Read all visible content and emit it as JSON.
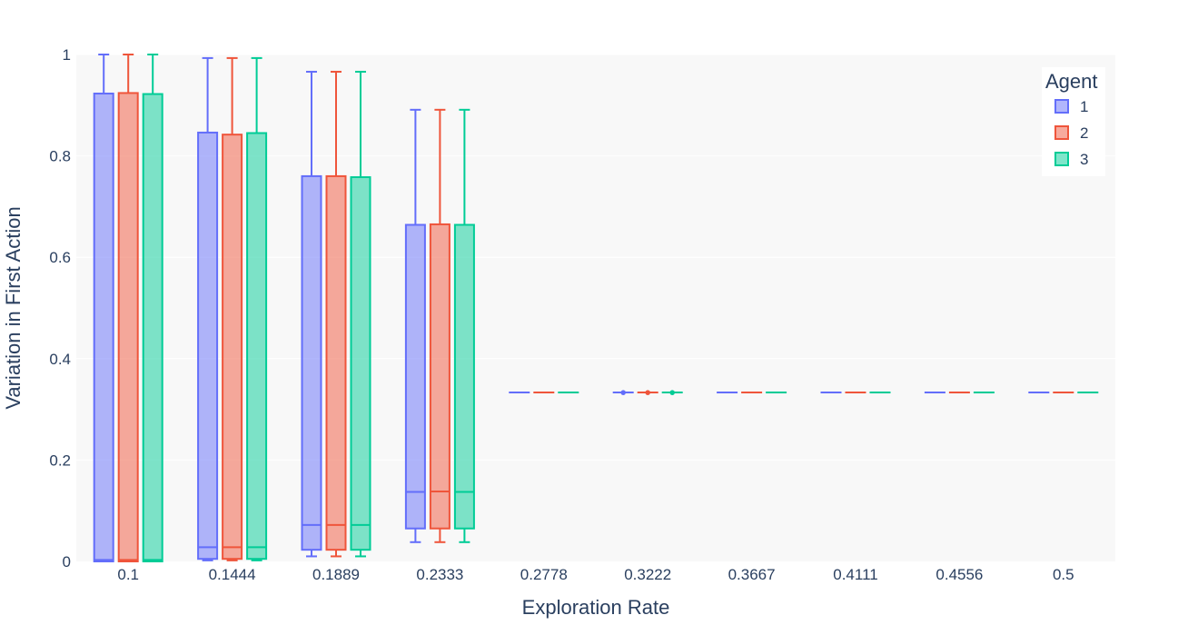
{
  "chart_data": {
    "type": "box",
    "title": "",
    "xlabel": "Exploration Rate",
    "ylabel": "Variation in First Action",
    "ylim": [
      0,
      1
    ],
    "y_ticks": [
      0,
      0.2,
      0.4,
      0.6,
      0.8,
      1
    ],
    "y_tick_labels": [
      "0",
      "0.2",
      "0.4",
      "0.6",
      "0.8",
      "1"
    ],
    "categories": [
      "0.1",
      "0.1444",
      "0.1889",
      "0.2333",
      "0.2778",
      "0.3222",
      "0.3667",
      "0.4111",
      "0.4556",
      "0.5"
    ],
    "grid": true,
    "legend": {
      "title": "Agent",
      "position": "top-right"
    },
    "series": [
      {
        "name": "1",
        "color": "#636efa",
        "fill": "rgba(99,110,250,0.5)",
        "boxes": [
          {
            "min": 0.0,
            "q1": 0.0,
            "median": 0.003,
            "q3": 0.923,
            "max": 1.0
          },
          {
            "min": 0.002,
            "q1": 0.005,
            "median": 0.028,
            "q3": 0.846,
            "max": 0.993
          },
          {
            "min": 0.01,
            "q1": 0.023,
            "median": 0.072,
            "q3": 0.76,
            "max": 0.966
          },
          {
            "min": 0.038,
            "q1": 0.065,
            "median": 0.137,
            "q3": 0.664,
            "max": 0.891
          },
          {
            "min": 0.3333,
            "q1": 0.3333,
            "median": 0.3333,
            "q3": 0.3333,
            "max": 0.3333
          },
          {
            "min": 0.3333,
            "q1": 0.3333,
            "median": 0.3333,
            "q3": 0.3333,
            "max": 0.3333,
            "outliers": [
              0.333
            ]
          },
          {
            "min": 0.3333,
            "q1": 0.3333,
            "median": 0.3333,
            "q3": 0.3333,
            "max": 0.3333
          },
          {
            "min": 0.3333,
            "q1": 0.3333,
            "median": 0.3333,
            "q3": 0.3333,
            "max": 0.3333
          },
          {
            "min": 0.3333,
            "q1": 0.3333,
            "median": 0.3333,
            "q3": 0.3333,
            "max": 0.3333
          },
          {
            "min": 0.3333,
            "q1": 0.3333,
            "median": 0.3333,
            "q3": 0.3333,
            "max": 0.3333
          }
        ]
      },
      {
        "name": "2",
        "color": "#ef553b",
        "fill": "rgba(239,85,59,0.5)",
        "boxes": [
          {
            "min": 0.0,
            "q1": 0.0,
            "median": 0.003,
            "q3": 0.924,
            "max": 1.0
          },
          {
            "min": 0.002,
            "q1": 0.005,
            "median": 0.028,
            "q3": 0.842,
            "max": 0.993
          },
          {
            "min": 0.01,
            "q1": 0.023,
            "median": 0.072,
            "q3": 0.76,
            "max": 0.966
          },
          {
            "min": 0.038,
            "q1": 0.065,
            "median": 0.138,
            "q3": 0.665,
            "max": 0.891
          },
          {
            "min": 0.3333,
            "q1": 0.3333,
            "median": 0.3333,
            "q3": 0.3333,
            "max": 0.3333
          },
          {
            "min": 0.3333,
            "q1": 0.3333,
            "median": 0.3333,
            "q3": 0.3333,
            "max": 0.3333,
            "outliers": [
              0.333
            ]
          },
          {
            "min": 0.3333,
            "q1": 0.3333,
            "median": 0.3333,
            "q3": 0.3333,
            "max": 0.3333
          },
          {
            "min": 0.3333,
            "q1": 0.3333,
            "median": 0.3333,
            "q3": 0.3333,
            "max": 0.3333
          },
          {
            "min": 0.3333,
            "q1": 0.3333,
            "median": 0.3333,
            "q3": 0.3333,
            "max": 0.3333
          },
          {
            "min": 0.3333,
            "q1": 0.3333,
            "median": 0.3333,
            "q3": 0.3333,
            "max": 0.3333
          }
        ]
      },
      {
        "name": "3",
        "color": "#00cc96",
        "fill": "rgba(0,204,150,0.5)",
        "boxes": [
          {
            "min": 0.0,
            "q1": 0.0,
            "median": 0.003,
            "q3": 0.922,
            "max": 1.0
          },
          {
            "min": 0.002,
            "q1": 0.005,
            "median": 0.028,
            "q3": 0.845,
            "max": 0.993
          },
          {
            "min": 0.01,
            "q1": 0.023,
            "median": 0.072,
            "q3": 0.758,
            "max": 0.966
          },
          {
            "min": 0.038,
            "q1": 0.065,
            "median": 0.137,
            "q3": 0.664,
            "max": 0.891
          },
          {
            "min": 0.3333,
            "q1": 0.3333,
            "median": 0.3333,
            "q3": 0.3333,
            "max": 0.3333
          },
          {
            "min": 0.3333,
            "q1": 0.3333,
            "median": 0.3333,
            "q3": 0.3333,
            "max": 0.3333,
            "outliers": [
              0.333
            ]
          },
          {
            "min": 0.3333,
            "q1": 0.3333,
            "median": 0.3333,
            "q3": 0.3333,
            "max": 0.3333
          },
          {
            "min": 0.3333,
            "q1": 0.3333,
            "median": 0.3333,
            "q3": 0.3333,
            "max": 0.3333
          },
          {
            "min": 0.3333,
            "q1": 0.3333,
            "median": 0.3333,
            "q3": 0.3333,
            "max": 0.3333
          },
          {
            "min": 0.3333,
            "q1": 0.3333,
            "median": 0.3333,
            "q3": 0.3333,
            "max": 0.3333
          }
        ]
      }
    ]
  }
}
